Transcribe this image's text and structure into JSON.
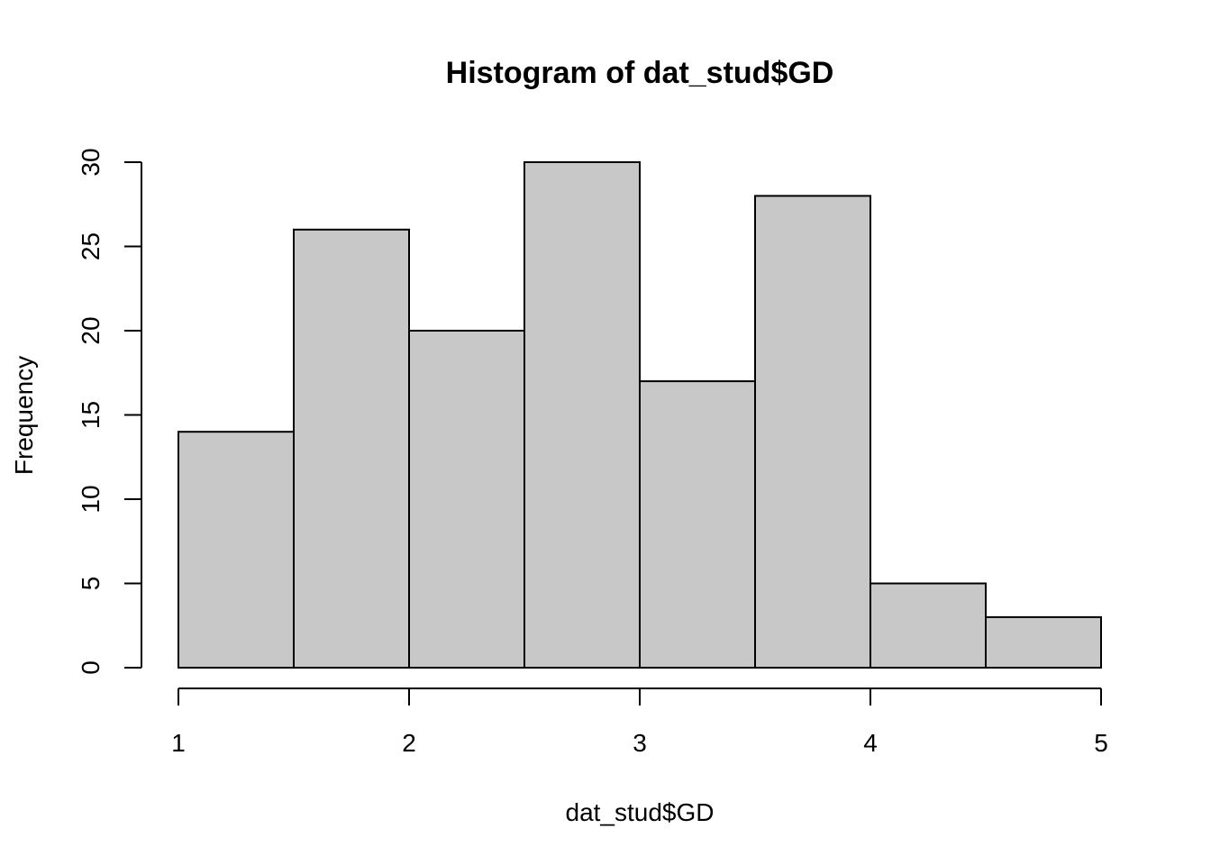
{
  "chart_data": {
    "type": "bar",
    "subtype": "histogram",
    "title": "Histogram of dat_stud$GD",
    "xlabel": "dat_stud$GD",
    "ylabel": "Frequency",
    "bins": [
      {
        "start": 1.0,
        "end": 1.5,
        "count": 14
      },
      {
        "start": 1.5,
        "end": 2.0,
        "count": 26
      },
      {
        "start": 2.0,
        "end": 2.5,
        "count": 20
      },
      {
        "start": 2.5,
        "end": 3.0,
        "count": 30
      },
      {
        "start": 3.0,
        "end": 3.5,
        "count": 17
      },
      {
        "start": 3.5,
        "end": 4.0,
        "count": 28
      },
      {
        "start": 4.0,
        "end": 4.5,
        "count": 5
      },
      {
        "start": 4.5,
        "end": 5.0,
        "count": 3
      }
    ],
    "xlim": [
      1,
      5
    ],
    "ylim": [
      0,
      30
    ],
    "x_ticks": [
      "1",
      "2",
      "3",
      "4",
      "5"
    ],
    "y_ticks": [
      "0",
      "5",
      "10",
      "15",
      "20",
      "25",
      "30"
    ],
    "bar_color": "#c8c8c8",
    "grid": false,
    "legend": "none"
  }
}
